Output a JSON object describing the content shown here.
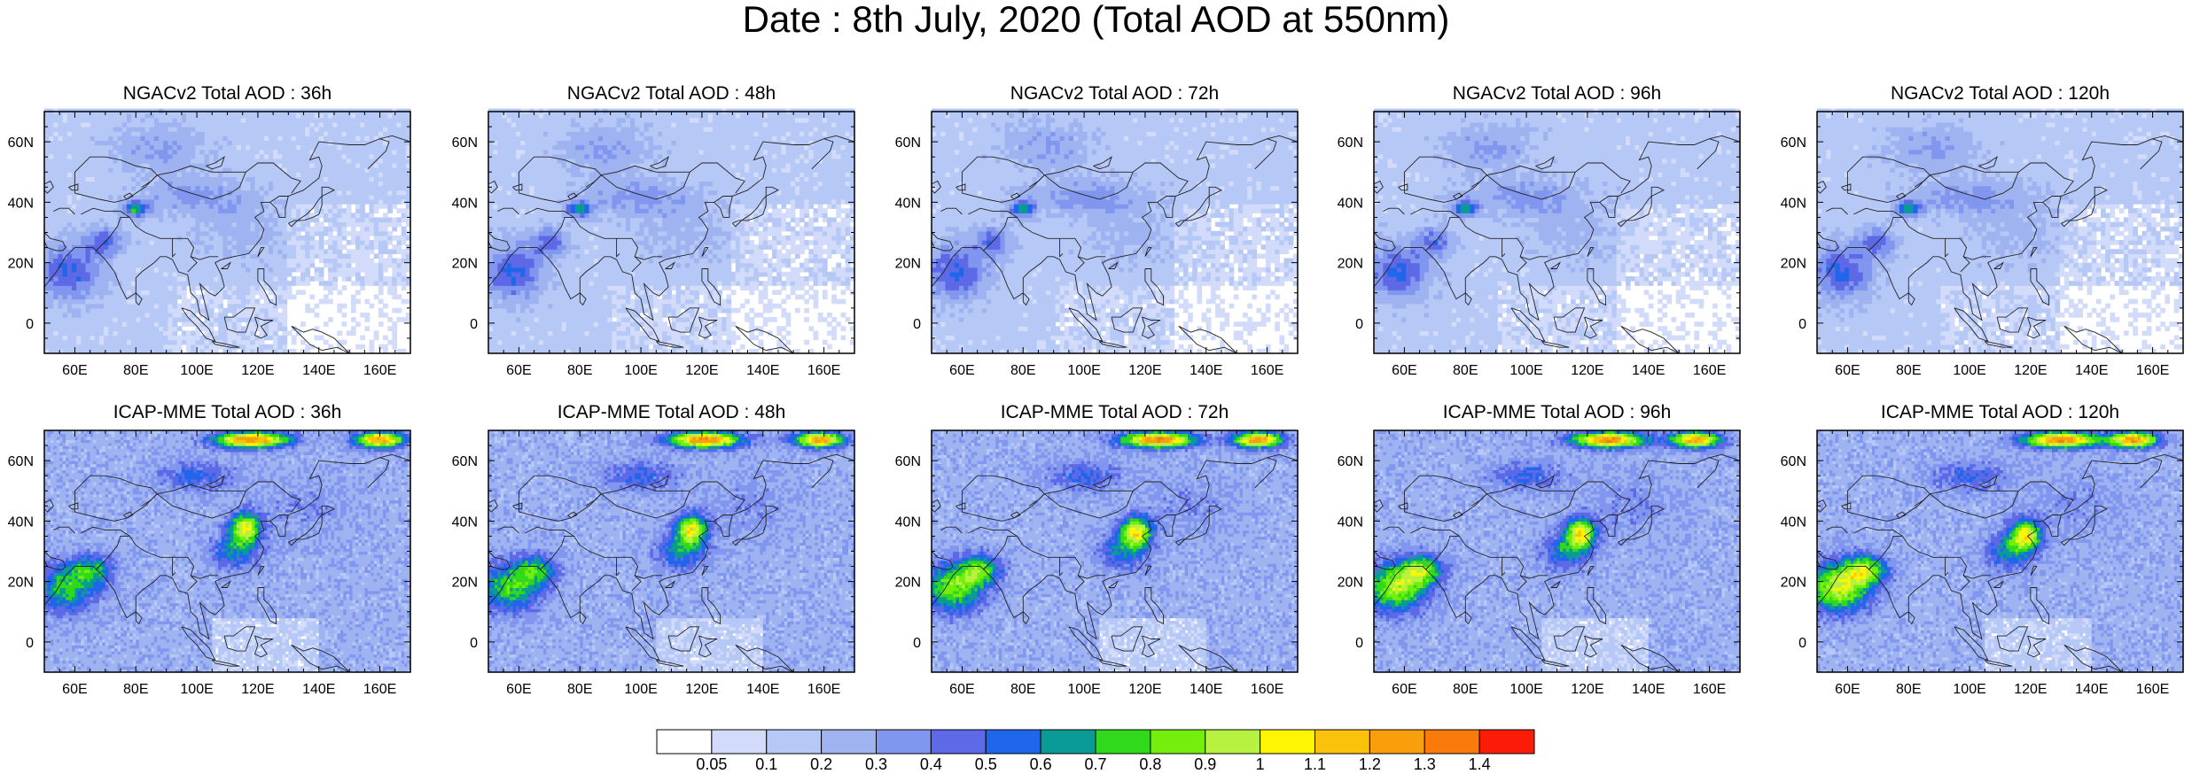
{
  "title": "Date : 8th July, 2020 (Total AOD at 550nm)",
  "rows": [
    {
      "model": "NGACv2",
      "panels": [
        {
          "title": "NGACv2 Total AOD : 36h"
        },
        {
          "title": "NGACv2 Total AOD : 48h"
        },
        {
          "title": "NGACv2 Total AOD : 72h"
        },
        {
          "title": "NGACv2 Total AOD : 96h"
        },
        {
          "title": "NGACv2 Total AOD : 120h"
        }
      ]
    },
    {
      "model": "ICAP-MME",
      "panels": [
        {
          "title": "ICAP-MME Total AOD : 36h"
        },
        {
          "title": "ICAP-MME Total AOD : 48h"
        },
        {
          "title": "ICAP-MME Total AOD : 72h"
        },
        {
          "title": "ICAP-MME Total AOD : 96h"
        },
        {
          "title": "ICAP-MME Total AOD : 120h"
        }
      ]
    }
  ],
  "map": {
    "lon_range": [
      50,
      170
    ],
    "lat_range": [
      -10,
      70
    ],
    "lon_ticks": [
      "60E",
      "80E",
      "100E",
      "120E",
      "140E",
      "160E"
    ],
    "lat_ticks": [
      "60N",
      "40N",
      "20N",
      "0"
    ]
  },
  "colorbar": {
    "labels": [
      "0.05",
      "0.1",
      "0.2",
      "0.3",
      "0.4",
      "0.5",
      "0.6",
      "0.7",
      "0.8",
      "0.9",
      "1",
      "1.1",
      "1.2",
      "1.3",
      "1.4"
    ],
    "colors": [
      "#ffffff",
      "#d2dcfa",
      "#b6c8f6",
      "#9fb3f1",
      "#8196ee",
      "#5d69e6",
      "#1f66ea",
      "#0b9b96",
      "#31d91c",
      "#74ee0d",
      "#b6f23f",
      "#fdf503",
      "#fbc20b",
      "#f99f0c",
      "#f97b0b",
      "#fb1c08"
    ]
  }
}
